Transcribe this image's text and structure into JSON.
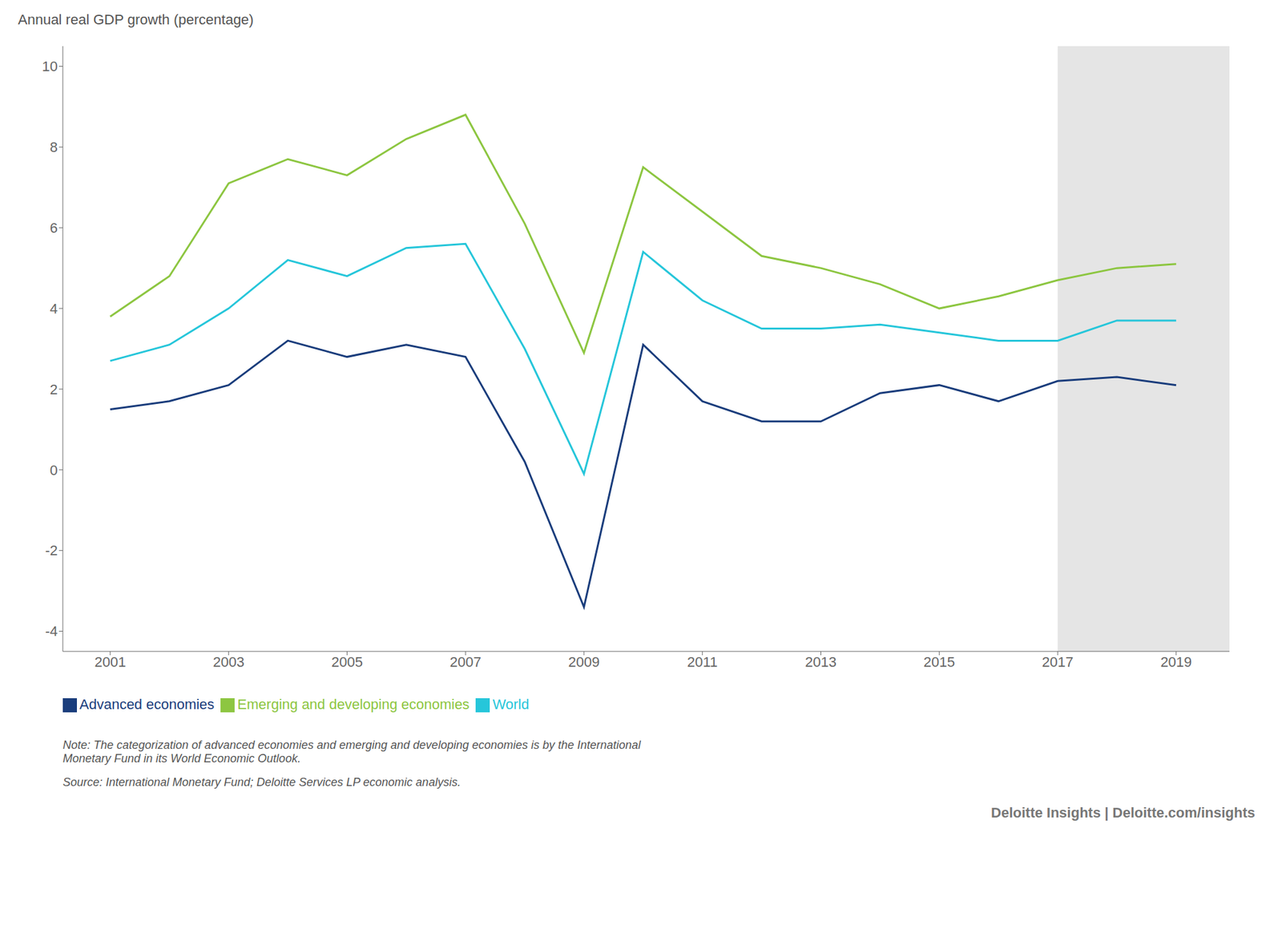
{
  "chart_data": {
    "type": "line",
    "ylabel": "Annual real GDP growth (percentage)",
    "x": [
      2001,
      2002,
      2003,
      2004,
      2005,
      2006,
      2007,
      2008,
      2009,
      2010,
      2011,
      2012,
      2013,
      2014,
      2015,
      2016,
      2017,
      2018,
      2019
    ],
    "series": [
      {
        "name": "World",
        "color": "#26c6da",
        "values": [
          2.7,
          3.1,
          4.0,
          5.2,
          4.8,
          5.5,
          5.6,
          3.0,
          -0.1,
          5.4,
          4.2,
          3.5,
          3.5,
          3.6,
          3.4,
          3.2,
          3.2,
          3.7,
          3.7
        ]
      },
      {
        "name": "Advanced economies",
        "color": "#1a3d7c",
        "values": [
          1.5,
          1.7,
          2.1,
          3.2,
          2.8,
          3.1,
          2.8,
          0.2,
          -3.4,
          3.1,
          1.7,
          1.2,
          1.2,
          1.9,
          2.1,
          1.7,
          2.2,
          2.3,
          2.1
        ]
      },
      {
        "name": "Emerging and developing economies",
        "color": "#8dc641",
        "values": [
          3.8,
          4.8,
          7.1,
          7.7,
          7.3,
          8.2,
          8.8,
          6.1,
          2.9,
          7.5,
          6.4,
          5.3,
          5.0,
          4.6,
          4.0,
          4.3,
          4.7,
          5.0,
          5.1
        ]
      }
    ],
    "forecast_start": 2017,
    "xlim": [
      2000.2,
      2019.9
    ],
    "xticks": [
      2001,
      2003,
      2005,
      2007,
      2009,
      2011,
      2013,
      2015,
      2017,
      2019
    ],
    "ylim": [
      -4.5,
      10.5
    ],
    "yticks": [
      -4,
      -2,
      0,
      2,
      4,
      6,
      8,
      10
    ],
    "grid": false,
    "legend": "bottom",
    "note": "Note: The categorization of advanced economies and emerging and developing economies is by the International\nMonetary Fund in its World Economic Outlook.",
    "source": "Source: International Monetary Fund; Deloitte Services LP economic analysis.",
    "brand": "Deloitte Insights | Deloitte.com/insights"
  }
}
